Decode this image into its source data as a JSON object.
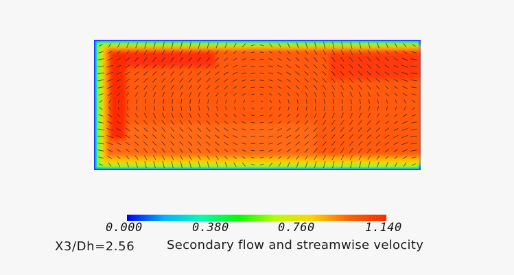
{
  "chart_data": {
    "type": "heatmap",
    "title": "Secondary flow and streamwise velocity",
    "station_label": "X3/Dh=2.56",
    "colorbar": {
      "min": 0.0,
      "max": 1.14,
      "tick_values": [
        0.0,
        0.38,
        0.76,
        1.14
      ],
      "tick_labels": [
        "0.000",
        "0.380",
        "0.760",
        "1.140"
      ],
      "colors": [
        "#0000ff",
        "#00b4ff",
        "#00ffb0",
        "#00ff00",
        "#b4ff00",
        "#ffd200",
        "#ff6000",
        "#ff2a00"
      ]
    },
    "field_range": [
      0.0,
      1.14
    ],
    "field_typical_value": 1.05,
    "core_peak_value": 1.12,
    "secondary_flow": "vector arrows (in-plane velocity)"
  }
}
